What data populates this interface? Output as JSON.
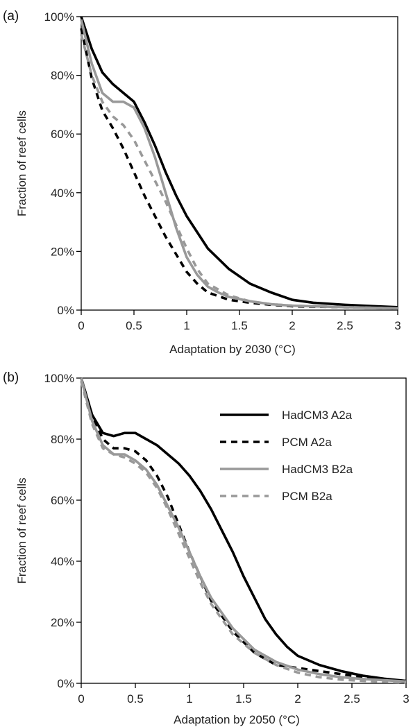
{
  "chart_data": [
    {
      "type": "line",
      "panel_label": "(a)",
      "xlabel": "Adaptation by 2030 (°C)",
      "ylabel": "Fraction of reef cells",
      "xlim": [
        0,
        3
      ],
      "ylim": [
        0,
        100
      ],
      "x_ticks": [
        0,
        0.5,
        1,
        1.5,
        2,
        2.5,
        3
      ],
      "x_tick_labels": [
        "0",
        "0.5",
        "1",
        "1.5",
        "2",
        "2.5",
        "3"
      ],
      "y_ticks": [
        0,
        20,
        40,
        60,
        80,
        100
      ],
      "y_tick_labels": [
        "0%",
        "20%",
        "40%",
        "60%",
        "80%",
        "100%"
      ],
      "grid": false,
      "legend": null,
      "series": [
        {
          "name": "HadCM3 A2a",
          "color": "#000000",
          "dash": "solid",
          "x": [
            0,
            0.1,
            0.2,
            0.3,
            0.4,
            0.5,
            0.6,
            0.7,
            0.8,
            0.9,
            1.0,
            1.2,
            1.4,
            1.6,
            1.8,
            2.0,
            2.2,
            2.5,
            2.8,
            3.0
          ],
          "y": [
            100,
            89,
            81,
            77,
            74,
            71,
            64,
            56,
            47,
            39,
            32,
            21,
            14,
            9,
            6,
            3.5,
            2.5,
            1.8,
            1.3,
            1
          ]
        },
        {
          "name": "PCM A2a",
          "color": "#000000",
          "dash": "dashed",
          "x": [
            0,
            0.1,
            0.2,
            0.3,
            0.4,
            0.5,
            0.6,
            0.7,
            0.8,
            0.9,
            1.0,
            1.1,
            1.2,
            1.4,
            1.6,
            1.8,
            2.0,
            2.5,
            3.0
          ],
          "y": [
            96,
            79,
            68,
            62,
            55,
            47,
            39,
            32,
            25,
            19,
            13,
            9,
            6,
            3.5,
            2.5,
            1.8,
            1.3,
            1,
            0.6
          ]
        },
        {
          "name": "HadCM3 B2a",
          "color": "#999999",
          "dash": "solid",
          "x": [
            0,
            0.1,
            0.2,
            0.3,
            0.4,
            0.5,
            0.6,
            0.7,
            0.8,
            0.9,
            1.0,
            1.1,
            1.2,
            1.3,
            1.4,
            1.6,
            1.8,
            2.0,
            2.5,
            3.0
          ],
          "y": [
            99,
            84,
            74,
            71,
            71,
            69,
            62,
            52,
            40,
            28,
            18,
            12,
            8,
            6,
            4.5,
            3,
            2,
            1.5,
            1,
            0.6
          ]
        },
        {
          "name": "PCM B2a",
          "color": "#999999",
          "dash": "dashed",
          "x": [
            0,
            0.1,
            0.2,
            0.3,
            0.4,
            0.5,
            0.6,
            0.7,
            0.8,
            0.9,
            1.0,
            1.1,
            1.2,
            1.4,
            1.6,
            1.8,
            2.0,
            2.5,
            3.0
          ],
          "y": [
            94,
            80,
            71,
            66,
            63,
            58,
            51,
            44,
            37,
            29,
            21,
            14,
            9,
            5,
            3,
            2,
            1.5,
            1,
            0.6
          ]
        }
      ]
    },
    {
      "type": "line",
      "panel_label": "(b)",
      "xlabel": "Adaptation by 2050 (°C)",
      "ylabel": "Fraction of reef cells",
      "xlim": [
        0,
        3
      ],
      "ylim": [
        0,
        100
      ],
      "x_ticks": [
        0,
        0.5,
        1,
        1.5,
        2,
        2.5,
        3
      ],
      "x_tick_labels": [
        "0",
        "0.5",
        "1",
        "1.5",
        "2",
        "2.5",
        "3"
      ],
      "y_ticks": [
        0,
        20,
        40,
        60,
        80,
        100
      ],
      "y_tick_labels": [
        "0%",
        "20%",
        "40%",
        "60%",
        "80%",
        "100%"
      ],
      "grid": false,
      "legend": "top-right",
      "series": [
        {
          "name": "HadCM3 A2a",
          "color": "#000000",
          "dash": "solid",
          "x": [
            0,
            0.1,
            0.2,
            0.3,
            0.4,
            0.5,
            0.6,
            0.7,
            0.8,
            0.9,
            1.0,
            1.1,
            1.2,
            1.3,
            1.4,
            1.5,
            1.6,
            1.7,
            1.8,
            1.9,
            2.0,
            2.2,
            2.4,
            2.6,
            2.8,
            3.0
          ],
          "y": [
            100,
            88,
            82,
            81,
            82,
            82,
            80,
            78,
            75,
            72,
            68,
            63,
            57,
            50,
            43,
            35,
            28,
            21,
            16,
            12,
            9,
            6,
            4,
            2.5,
            1.5,
            0.8
          ]
        },
        {
          "name": "PCM A2a",
          "color": "#000000",
          "dash": "dashed",
          "x": [
            0,
            0.1,
            0.2,
            0.3,
            0.4,
            0.5,
            0.6,
            0.7,
            0.8,
            0.9,
            1.0,
            1.1,
            1.2,
            1.4,
            1.6,
            1.8,
            2.0,
            2.2,
            2.4,
            2.6,
            2.8,
            3.0
          ],
          "y": [
            100,
            88,
            80,
            77,
            77,
            76,
            73,
            68,
            61,
            52,
            43,
            35,
            27,
            17,
            10,
            6,
            5,
            4,
            3,
            2,
            1.2,
            0.6
          ]
        },
        {
          "name": "HadCM3 B2a",
          "color": "#999999",
          "dash": "solid",
          "x": [
            0,
            0.1,
            0.2,
            0.3,
            0.4,
            0.5,
            0.6,
            0.7,
            0.8,
            0.9,
            1.0,
            1.1,
            1.2,
            1.4,
            1.6,
            1.8,
            2.0,
            2.2,
            2.4,
            2.6,
            2.8,
            3.0
          ],
          "y": [
            100,
            86,
            78,
            75,
            75,
            73,
            70,
            65,
            58,
            51,
            43,
            35,
            28,
            18,
            11,
            7,
            4.5,
            3,
            2,
            1.4,
            1,
            0.6
          ]
        },
        {
          "name": "PCM B2a",
          "color": "#999999",
          "dash": "dashed",
          "x": [
            0,
            0.1,
            0.2,
            0.3,
            0.4,
            0.5,
            0.6,
            0.7,
            0.8,
            0.9,
            1.0,
            1.1,
            1.2,
            1.4,
            1.6,
            1.8,
            2.0,
            2.2,
            2.4,
            2.6,
            2.8,
            3.0
          ],
          "y": [
            99,
            85,
            77,
            75,
            74,
            72,
            69,
            64,
            57,
            49,
            41,
            33,
            26,
            16,
            10,
            6,
            3.5,
            2,
            1.2,
            0.8,
            0.5,
            0.3
          ]
        }
      ]
    }
  ]
}
